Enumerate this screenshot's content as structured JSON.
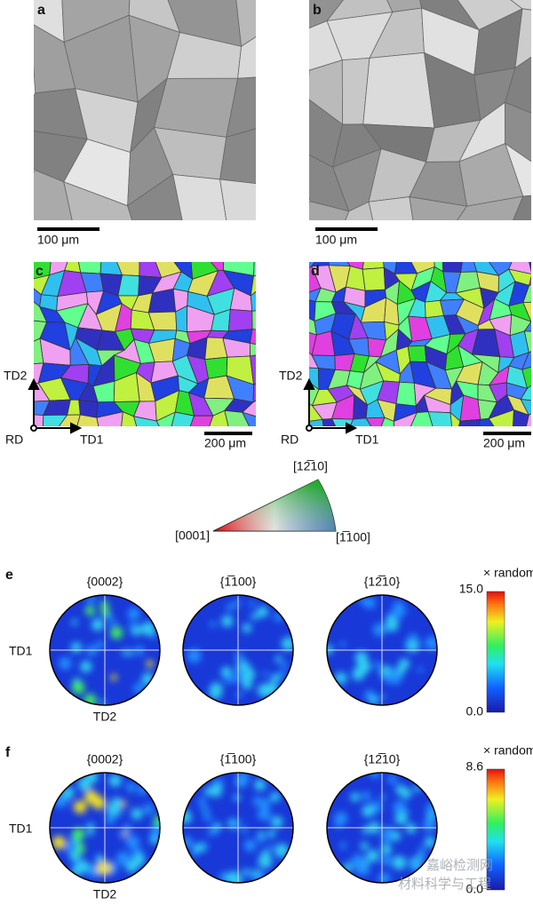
{
  "panels": {
    "a": {
      "label": "a",
      "scale": "100 μm"
    },
    "b": {
      "label": "b",
      "scale": "100 μm"
    },
    "c": {
      "label": "c",
      "scale": "200 μm",
      "axes": [
        "TD2",
        "RD",
        "TD1"
      ]
    },
    "d": {
      "label": "d",
      "scale": "200 μm",
      "axes": [
        "TD2",
        "RD",
        "TD1"
      ]
    },
    "ipf": {
      "top": "[12̅10]",
      "left": "[0001]",
      "right": "[1̅100]"
    },
    "e": {
      "label": "e",
      "titles": [
        "{0002}",
        "{1̅100}",
        "{12̅10}"
      ],
      "td1": "TD1",
      "td2": "TD2",
      "colorbar": {
        "title": "× random",
        "max": "15.0",
        "min": "0.0"
      }
    },
    "f": {
      "label": "f",
      "titles": [
        "{0002}",
        "{1̅100}",
        "{12̅10}"
      ],
      "td1": "TD1",
      "td2": "TD2",
      "colorbar": {
        "title": "× random",
        "max": "8.6",
        "min": "0.0"
      }
    }
  },
  "watermark": [
    "嘉峪检测网",
    "材料科学与工程"
  ]
}
